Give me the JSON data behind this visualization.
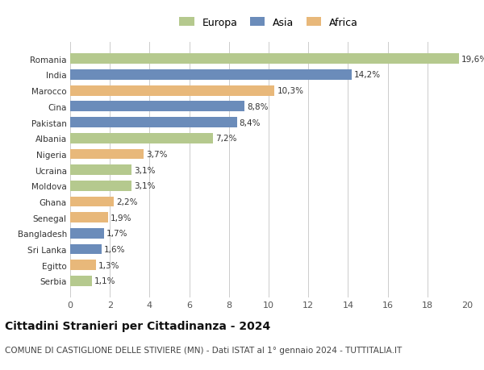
{
  "categories": [
    "Romania",
    "India",
    "Marocco",
    "Cina",
    "Pakistan",
    "Albania",
    "Nigeria",
    "Ucraina",
    "Moldova",
    "Ghana",
    "Senegal",
    "Bangladesh",
    "Sri Lanka",
    "Egitto",
    "Serbia"
  ],
  "values": [
    19.6,
    14.2,
    10.3,
    8.8,
    8.4,
    7.2,
    3.7,
    3.1,
    3.1,
    2.2,
    1.9,
    1.7,
    1.6,
    1.3,
    1.1
  ],
  "labels": [
    "19,6%",
    "14,2%",
    "10,3%",
    "8,8%",
    "8,4%",
    "7,2%",
    "3,7%",
    "3,1%",
    "3,1%",
    "2,2%",
    "1,9%",
    "1,7%",
    "1,6%",
    "1,3%",
    "1,1%"
  ],
  "continents": [
    "Europa",
    "Asia",
    "Africa",
    "Asia",
    "Asia",
    "Europa",
    "Africa",
    "Europa",
    "Europa",
    "Africa",
    "Africa",
    "Asia",
    "Asia",
    "Africa",
    "Europa"
  ],
  "colors": {
    "Europa": "#b5c98e",
    "Asia": "#6b8cba",
    "Africa": "#e8b87a"
  },
  "xlim": [
    0,
    20
  ],
  "xticks": [
    0,
    2,
    4,
    6,
    8,
    10,
    12,
    14,
    16,
    18,
    20
  ],
  "title": "Cittadini Stranieri per Cittadinanza - 2024",
  "subtitle": "COMUNE DI CASTIGLIONE DELLE STIVIERE (MN) - Dati ISTAT al 1° gennaio 2024 - TUTTITALIA.IT",
  "title_fontsize": 10,
  "subtitle_fontsize": 7.5,
  "background_color": "#ffffff",
  "grid_color": "#cccccc",
  "bar_height": 0.65,
  "label_fontsize": 7.5,
  "tick_fontsize": 8,
  "category_fontsize": 7.5,
  "legend_fontsize": 9
}
